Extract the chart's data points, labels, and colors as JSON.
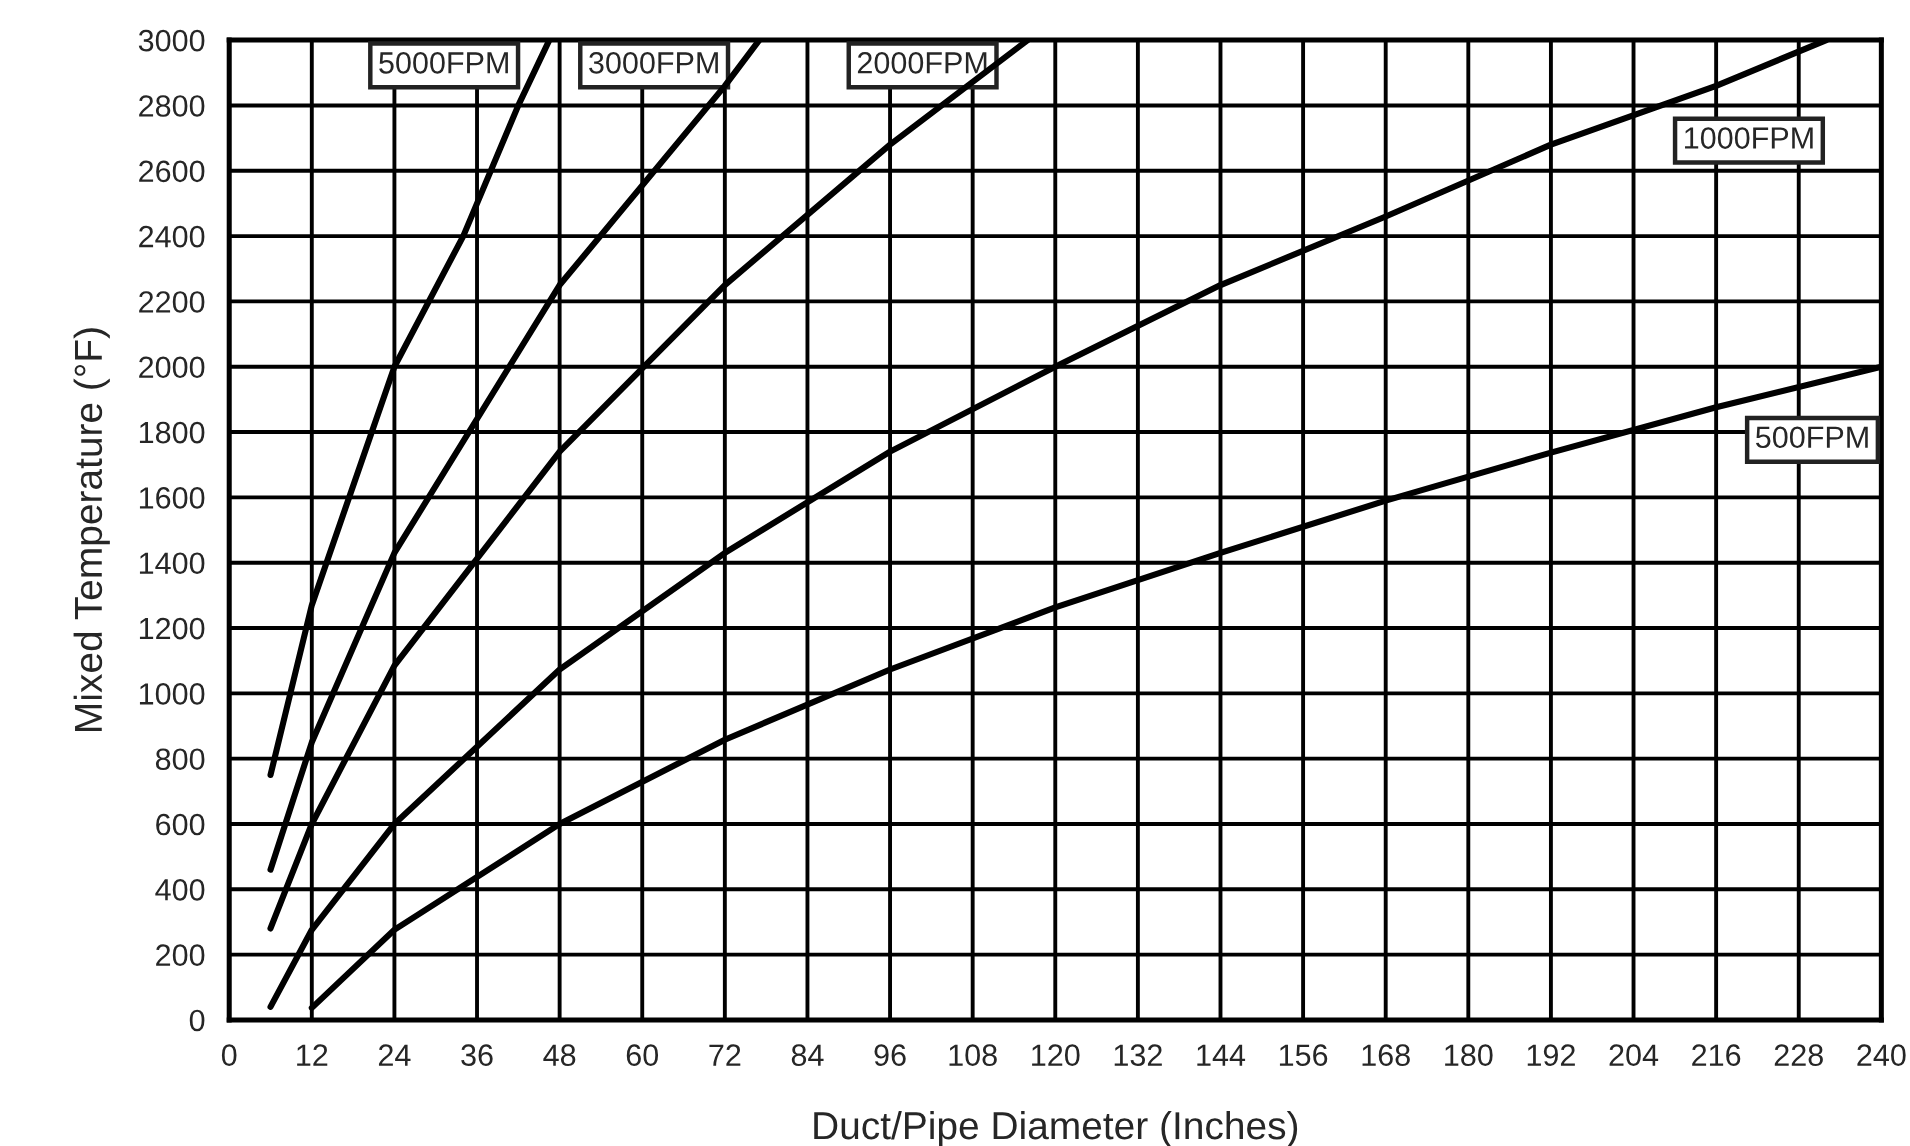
{
  "chart_data": {
    "type": "line",
    "xlabel": "Duct/Pipe Diameter (Inches)",
    "ylabel": "Mixed Temperature (°F)",
    "xlim": [
      0,
      240
    ],
    "xticks": [
      0,
      12,
      24,
      36,
      48,
      60,
      72,
      84,
      96,
      108,
      120,
      132,
      144,
      156,
      168,
      180,
      192,
      204,
      216,
      228,
      240
    ],
    "ylim": [
      0,
      3000
    ],
    "yticks": [
      0,
      200,
      400,
      600,
      800,
      1000,
      1200,
      1400,
      1600,
      1800,
      2000,
      2200,
      2400,
      2600,
      2800,
      3000
    ],
    "grid": true,
    "legend": false,
    "marker": "none",
    "line_style": "solid",
    "series": [
      {
        "name": "5000FPM",
        "color": "#000000",
        "x": [
          6,
          12,
          24,
          34,
          42,
          46.5
        ],
        "values": [
          750,
          1270,
          2000,
          2400,
          2800,
          3000
        ]
      },
      {
        "name": "3000FPM",
        "color": "#000000",
        "x": [
          6,
          12,
          24,
          48,
          72,
          77
        ],
        "values": [
          460,
          850,
          1430,
          2250,
          2860,
          3000
        ]
      },
      {
        "name": "2000FPM",
        "color": "#000000",
        "x": [
          6,
          12,
          24,
          48,
          72,
          96,
          116
        ],
        "values": [
          280,
          600,
          1085,
          1740,
          2250,
          2680,
          3000
        ]
      },
      {
        "name": "1000FPM",
        "color": "#000000",
        "x": [
          6,
          12,
          24,
          48,
          72,
          96,
          120,
          144,
          168,
          192,
          216,
          232
        ],
        "values": [
          40,
          276,
          600,
          1073,
          1430,
          1740,
          2000,
          2250,
          2460,
          2680,
          2860,
          3000
        ]
      },
      {
        "name": "500FPM",
        "color": "#000000",
        "x": [
          12,
          24,
          48,
          72,
          96,
          120,
          144,
          168,
          192,
          216,
          240
        ],
        "values": [
          37,
          276,
          600,
          858,
          1073,
          1263,
          1430,
          1590,
          1737,
          1876,
          2000
        ]
      }
    ]
  }
}
